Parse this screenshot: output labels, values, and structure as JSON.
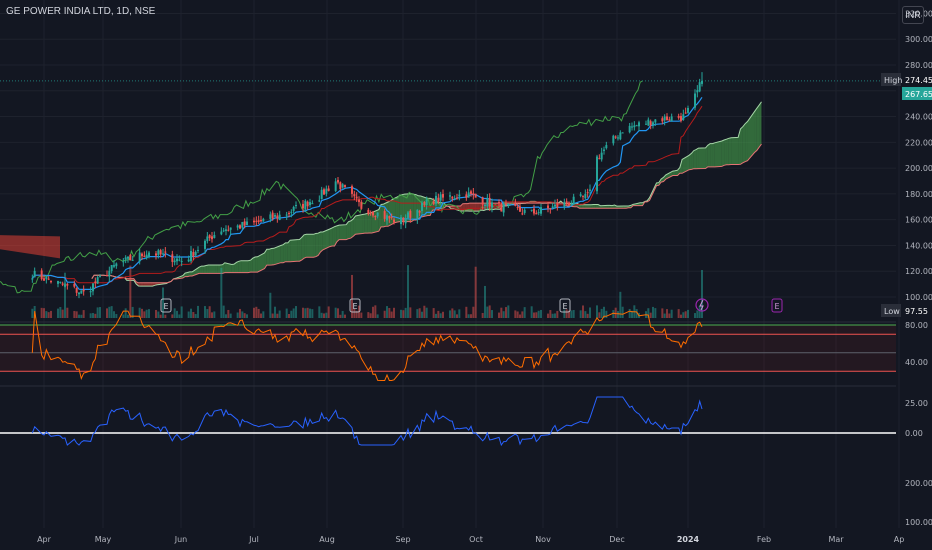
{
  "header": {
    "title": "GE POWER INDIA LTD, 1D, NSE",
    "currency": "INR"
  },
  "colors": {
    "bg": "#131722",
    "grid": "#1e222d",
    "up": "#26a69a",
    "down": "#ef5350",
    "conv": "#2196f3",
    "base": "#b71c1c",
    "lag": "#43a047",
    "spanA": "#a5d6a7",
    "spanB": "#e57373",
    "cloudUp": "#4caf50",
    "cloudDown": "#f44336",
    "rsi": "#ff6d00",
    "osc": "#2962ff"
  },
  "chart_data": [
    {
      "type": "candlestick",
      "title": "GE POWER INDIA LTD, 1D, NSE",
      "y_ticks": [
        "320.00",
        "300.00",
        "280.00",
        "260.00",
        "240.00",
        "220.00",
        "200.00",
        "180.00",
        "160.00",
        "140.00",
        "120.00",
        "100.00"
      ],
      "ylim": [
        97,
        324
      ],
      "high": {
        "label": "High",
        "value": "274.45"
      },
      "low": {
        "label": "Low",
        "value": "97.55"
      },
      "last": {
        "value": "267.65"
      },
      "x_labels": [
        "Apr",
        "May",
        "Jun",
        "Jul",
        "Aug",
        "Sep",
        "Oct",
        "Nov",
        "Dec",
        "2024",
        "Feb",
        "Mar",
        "Ap"
      ],
      "earnings_markers": [
        "E",
        "E",
        "E",
        "E"
      ],
      "close_anchors": {
        "dates": [
          "Mar 27",
          "Apr 5",
          "Apr 18",
          "May 2",
          "May 16",
          "May 31",
          "Jun 15",
          "Jun 30",
          "Jul 14",
          "Jul 28",
          "Aug 4",
          "Aug 15",
          "Aug 31",
          "Sep 14",
          "Sep 29",
          "Oct 13",
          "Oct 27",
          "Nov 10",
          "Nov 20",
          "Nov 24",
          "Dec 5",
          "Dec 20",
          "Jan 1",
          "Jan 5",
          "Jan 8"
        ],
        "values": [
          118,
          112,
          103,
          125,
          135,
          128,
          152,
          157,
          165,
          178,
          190,
          170,
          158,
          175,
          180,
          170,
          165,
          172,
          178,
          208,
          230,
          238,
          240,
          255,
          267.65
        ]
      }
    },
    {
      "type": "line",
      "indicator": "RSI",
      "y_ticks": [
        "80.00",
        "40.00"
      ],
      "bands": [
        80,
        70,
        50,
        30
      ],
      "last": 78
    },
    {
      "type": "line",
      "indicator": "oscillator",
      "y_ticks": [
        "25.00",
        "0.00"
      ],
      "last": 20
    },
    {
      "type": "bar",
      "indicator": "volume-scale",
      "y_ticks": [
        "200.00",
        "100.00"
      ]
    }
  ]
}
